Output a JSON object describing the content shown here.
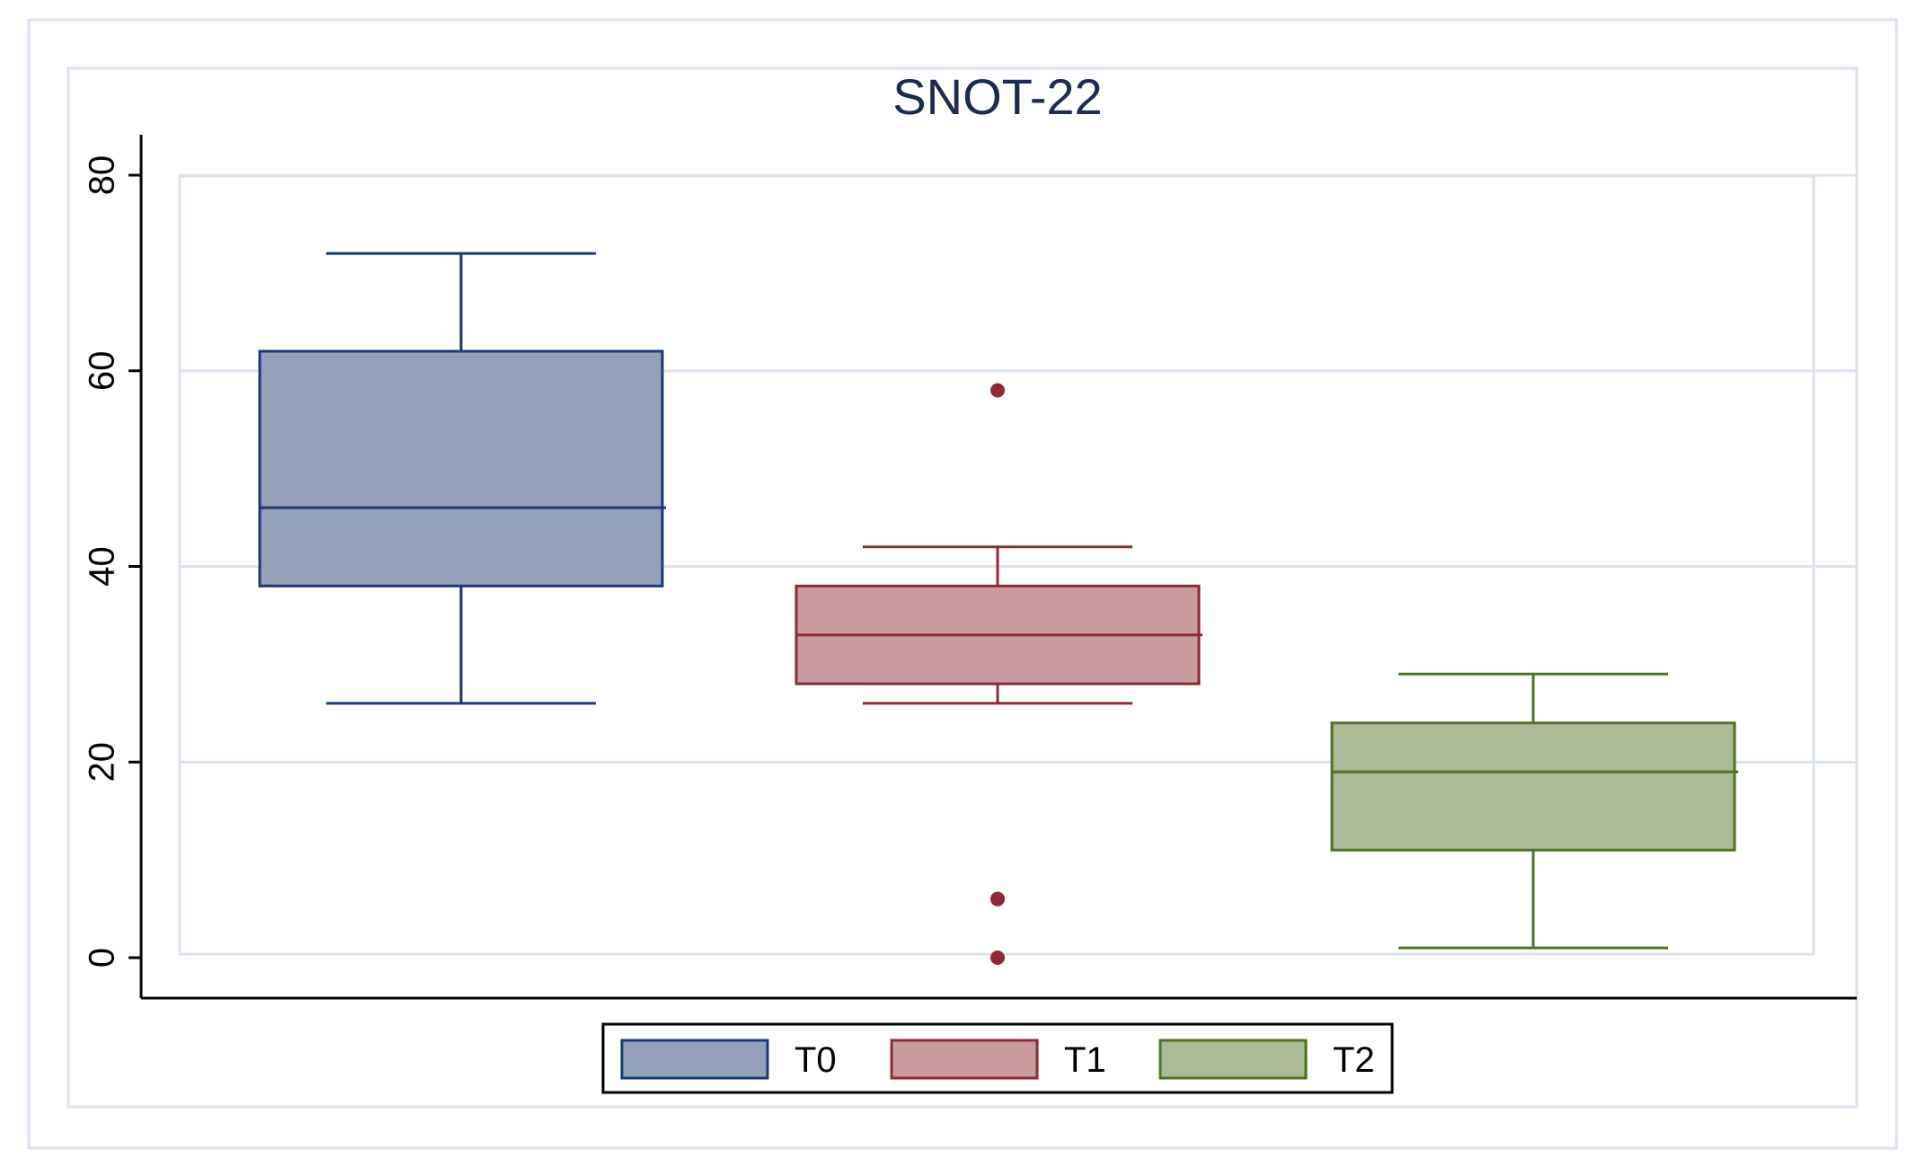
{
  "chart_data": {
    "type": "box",
    "title": "SNOT-22",
    "xlabel": "",
    "ylabel": "",
    "ylim": [
      -4,
      84
    ],
    "yticks": [
      0,
      20,
      40,
      60,
      80
    ],
    "ytick_labels": [
      "0",
      "20",
      "40",
      "60",
      "80"
    ],
    "grid": true,
    "legend_position": "bottom-center",
    "series": [
      {
        "name": "T0",
        "color": "#93A0BA",
        "edge": "#1A3A73",
        "whisker_low": 26,
        "q1": 38,
        "median": 46,
        "q3": 62,
        "whisker_high": 72,
        "outliers": []
      },
      {
        "name": "T1",
        "color": "#C99A9E",
        "edge": "#8C2A35",
        "whisker_low": 26,
        "q1": 28,
        "median": 33,
        "q3": 38,
        "whisker_high": 42,
        "outliers": [
          58,
          6,
          6,
          0
        ]
      },
      {
        "name": "T2",
        "color": "#AABA94",
        "edge": "#4E7226",
        "whisker_low": 1,
        "q1": 11,
        "median": 19,
        "q3": 24,
        "whisker_high": 29,
        "outliers": []
      }
    ]
  }
}
